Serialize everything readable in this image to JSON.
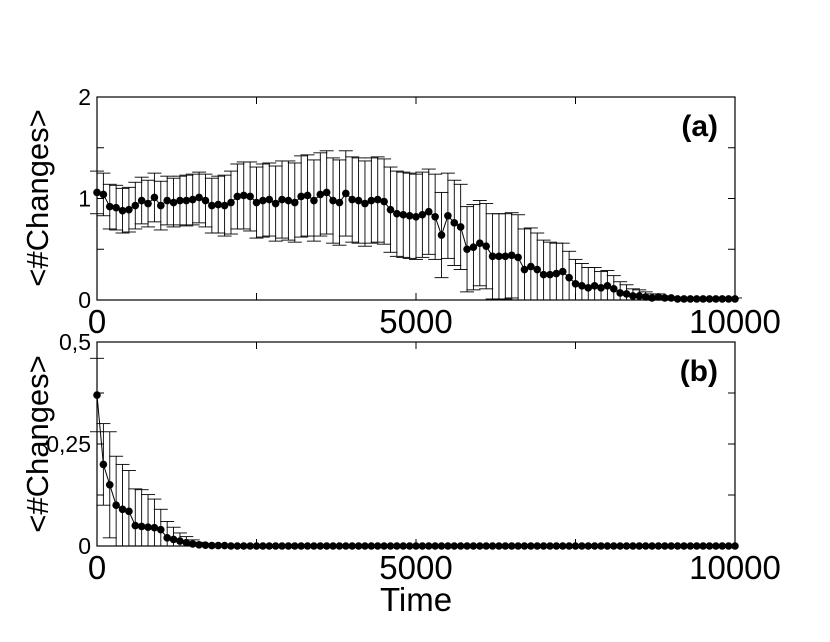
{
  "chart_data": [
    {
      "type": "scatter",
      "panel_label": "(a)",
      "xlabel": "",
      "ylabel": "<#Changes>",
      "xlim": [
        0,
        10000
      ],
      "ylim": [
        0,
        2
      ],
      "x_ticks": [
        {
          "value": 0,
          "label": "0"
        },
        {
          "value": 5000,
          "label": "5000"
        },
        {
          "value": 10000,
          "label": "10000"
        }
      ],
      "y_ticks": [
        {
          "value": 0,
          "label": "0"
        },
        {
          "value": 1,
          "label": "1"
        },
        {
          "value": 2,
          "label": "2"
        }
      ],
      "grid": false,
      "x_start": 0,
      "x_step": 100,
      "values": [
        1.06,
        1.04,
        0.92,
        0.91,
        0.88,
        0.89,
        0.93,
        0.98,
        0.95,
        1.01,
        0.93,
        0.98,
        0.96,
        0.98,
        0.98,
        0.99,
        1.01,
        0.98,
        0.93,
        0.94,
        0.93,
        0.96,
        1.02,
        1.03,
        1.02,
        0.96,
        0.98,
        0.99,
        0.95,
        0.99,
        0.98,
        0.96,
        1.02,
        1.03,
        0.98,
        1.04,
        1.06,
        0.98,
        0.96,
        1.05,
        0.99,
        0.98,
        0.95,
        0.98,
        0.99,
        0.97,
        0.89,
        0.85,
        0.84,
        0.83,
        0.82,
        0.84,
        0.87,
        0.82,
        0.64,
        0.83,
        0.76,
        0.72,
        0.5,
        0.52,
        0.56,
        0.53,
        0.43,
        0.43,
        0.43,
        0.44,
        0.42,
        0.3,
        0.33,
        0.3,
        0.25,
        0.25,
        0.26,
        0.28,
        0.22,
        0.16,
        0.14,
        0.12,
        0.14,
        0.12,
        0.14,
        0.11,
        0.07,
        0.06,
        0.04,
        0.04,
        0.03,
        0.02,
        0.03,
        0.02,
        0.02,
        0.01,
        0.01,
        0.01,
        0.01,
        0.01,
        0.01,
        0.01,
        0.01,
        0.01,
        0.01
      ],
      "errors": [
        0.21,
        0.21,
        0.22,
        0.22,
        0.22,
        0.22,
        0.23,
        0.23,
        0.23,
        0.24,
        0.24,
        0.24,
        0.24,
        0.24,
        0.25,
        0.25,
        0.25,
        0.26,
        0.27,
        0.28,
        0.3,
        0.31,
        0.32,
        0.33,
        0.34,
        0.35,
        0.36,
        0.36,
        0.37,
        0.38,
        0.39,
        0.39,
        0.4,
        0.4,
        0.4,
        0.41,
        0.41,
        0.42,
        0.42,
        0.42,
        0.42,
        0.42,
        0.42,
        0.42,
        0.42,
        0.42,
        0.42,
        0.42,
        0.42,
        0.42,
        0.42,
        0.42,
        0.42,
        0.42,
        0.42,
        0.42,
        0.42,
        0.42,
        0.42,
        0.42,
        0.42,
        0.42,
        0.42,
        0.42,
        0.42,
        0.42,
        0.42,
        0.4,
        0.38,
        0.36,
        0.34,
        0.32,
        0.3,
        0.28,
        0.26,
        0.24,
        0.22,
        0.2,
        0.18,
        0.16,
        0.15,
        0.13,
        0.11,
        0.09,
        0.07,
        0.06,
        0.05,
        0.04,
        0.03,
        0.02,
        0.01,
        0.01,
        0.01,
        0.01,
        0.01,
        0.01,
        0.01,
        0.01,
        0.01,
        0.01,
        0.01
      ]
    },
    {
      "type": "scatter",
      "panel_label": "(b)",
      "xlabel": "Time",
      "ylabel": "<#Changes>",
      "xlim": [
        0,
        10000
      ],
      "ylim": [
        0,
        0.5
      ],
      "x_ticks": [
        {
          "value": 0,
          "label": "0"
        },
        {
          "value": 5000,
          "label": "5000"
        },
        {
          "value": 10000,
          "label": "10000"
        }
      ],
      "y_ticks": [
        {
          "value": 0,
          "label": "0"
        },
        {
          "value": 0.25,
          "label": "0,25"
        },
        {
          "value": 0.5,
          "label": "0,5"
        }
      ],
      "grid": false,
      "x_start": 0,
      "x_step": 100,
      "values": [
        0.37,
        0.2,
        0.15,
        0.1,
        0.09,
        0.085,
        0.05,
        0.048,
        0.046,
        0.045,
        0.04,
        0.02,
        0.016,
        0.012,
        0.008,
        0.005,
        0.003,
        0.002,
        0.001,
        0.001,
        0.001,
        0,
        0,
        0,
        0,
        0,
        0,
        0,
        0,
        0,
        0,
        0,
        0,
        0,
        0,
        0,
        0,
        0,
        0,
        0,
        0,
        0,
        0,
        0,
        0,
        0,
        0,
        0,
        0,
        0,
        0,
        0,
        0,
        0,
        0,
        0,
        0,
        0,
        0,
        0,
        0,
        0,
        0,
        0,
        0,
        0,
        0,
        0,
        0,
        0,
        0,
        0,
        0,
        0,
        0,
        0,
        0,
        0,
        0,
        0,
        0,
        0,
        0,
        0,
        0,
        0,
        0,
        0,
        0,
        0,
        0,
        0,
        0,
        0,
        0,
        0,
        0,
        0,
        0,
        0,
        0
      ],
      "errors": [
        0.09,
        0.1,
        0.13,
        0.12,
        0.11,
        0.1,
        0.09,
        0.09,
        0.08,
        0.07,
        0.05,
        0.04,
        0.03,
        0.02,
        0.015,
        0.01,
        0.006,
        0.004,
        0.002,
        0.001,
        0.001,
        0,
        0,
        0,
        0,
        0,
        0,
        0,
        0,
        0,
        0,
        0,
        0,
        0,
        0,
        0,
        0,
        0,
        0,
        0,
        0,
        0,
        0,
        0,
        0,
        0,
        0,
        0,
        0,
        0,
        0,
        0,
        0,
        0,
        0,
        0,
        0,
        0,
        0,
        0,
        0,
        0,
        0,
        0,
        0,
        0,
        0,
        0,
        0,
        0,
        0,
        0,
        0,
        0,
        0,
        0,
        0,
        0,
        0,
        0,
        0,
        0,
        0,
        0,
        0,
        0,
        0,
        0,
        0,
        0,
        0,
        0,
        0,
        0,
        0,
        0,
        0,
        0,
        0,
        0,
        0
      ]
    }
  ]
}
